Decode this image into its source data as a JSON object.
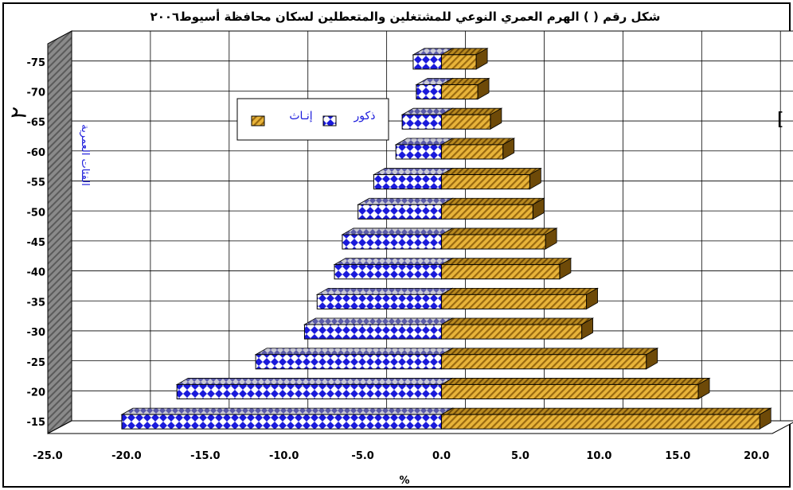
{
  "side_marks": {
    "left_number": "٢",
    "right_bracket": "["
  },
  "chart_data": {
    "type": "bar",
    "orientation": "horizontal",
    "style": "population-pyramid-3d",
    "title": "شكل رقم (      ) الهرم العمري النوعي للمشتغلين والمتعطلين لسكان محافظة أسيوط٢٠٠٦",
    "xlabel": "%",
    "ylabel": "الفئات العمرية",
    "xlim": [
      -25,
      21
    ],
    "x_ticks": [
      "-25.0",
      "-20.0",
      "-15.0",
      "-10.0",
      "-5.0",
      "0.0",
      "5.0",
      "10.0",
      "15.0",
      "20.0"
    ],
    "categories": [
      "-15",
      "-20",
      "-25",
      "-30",
      "-35",
      "-40",
      "-45",
      "-50",
      "-55",
      "-60",
      "-65",
      "-70",
      "-75"
    ],
    "grid": true,
    "legend_position": "upper-left inside plot",
    "series": [
      {
        "name": "ذكور",
        "color": "#1a1adb",
        "pattern": "diamond-check",
        "values": [
          -20.3,
          -16.8,
          -11.8,
          -8.7,
          -7.9,
          -6.8,
          -6.3,
          -5.3,
          -4.3,
          -2.9,
          -2.5,
          -1.6,
          -1.8
        ]
      },
      {
        "name": "إنـاث",
        "color": "#d9a521",
        "pattern": "diagonal-hatch",
        "values": [
          20.2,
          16.3,
          13.0,
          8.9,
          9.2,
          7.5,
          6.6,
          5.8,
          5.6,
          3.9,
          3.1,
          2.3,
          2.2
        ]
      }
    ]
  }
}
